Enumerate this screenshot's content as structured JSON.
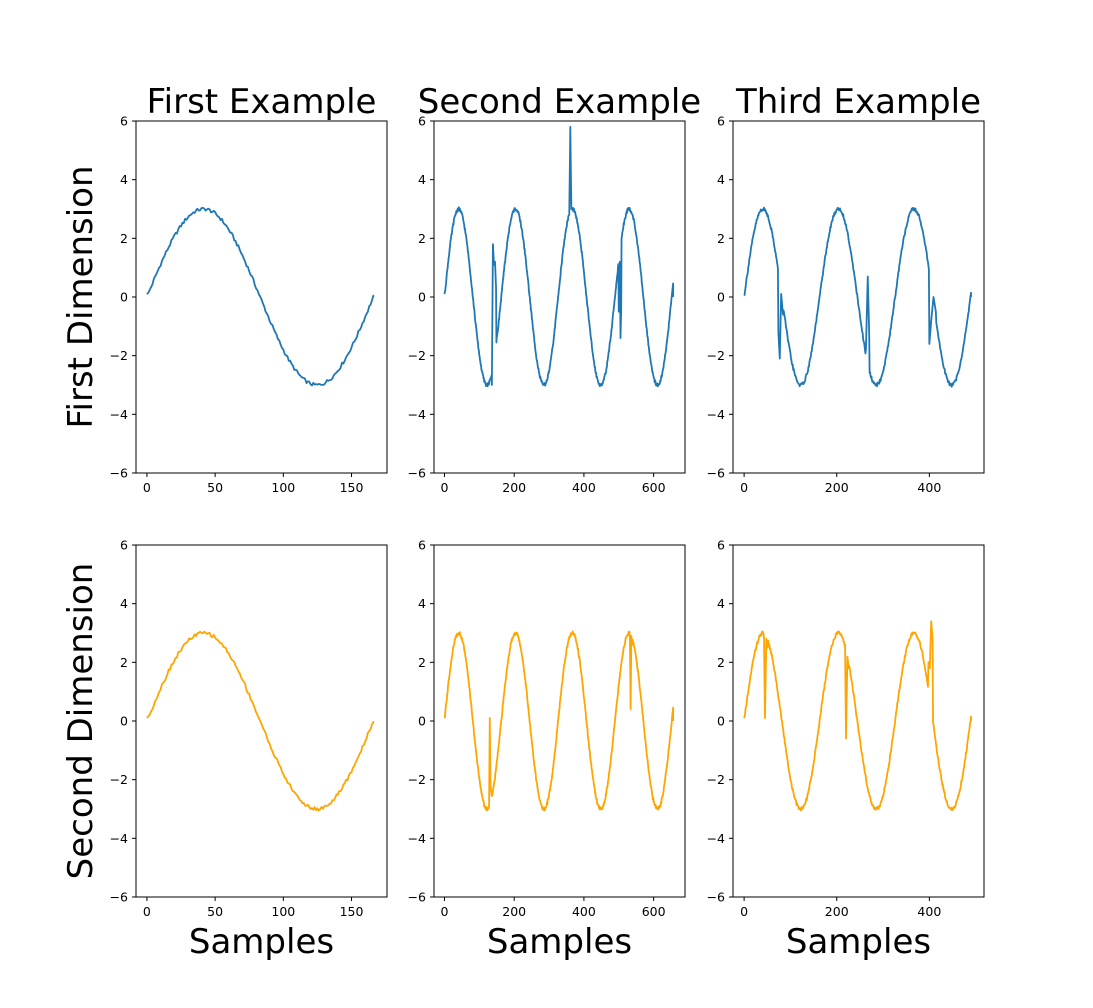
{
  "figure": {
    "column_titles": [
      "First Example",
      "Second Example",
      "Third Example"
    ],
    "row_labels": [
      "First Dimension",
      "Second Dimension"
    ],
    "x_label": "Samples"
  },
  "colors": {
    "first_dimension": "#1f77b4",
    "second_dimension": "#ffa500"
  },
  "chart_data": [
    {
      "type": "line",
      "row": 0,
      "col": 0,
      "title": "First Example",
      "ylabel": "First Dimension",
      "xlabel": "",
      "xlim": [
        -8,
        176
      ],
      "ylim": [
        -6,
        6
      ],
      "xticks": [
        0,
        50,
        100,
        150
      ],
      "yticks": [
        -6,
        -4,
        -2,
        0,
        2,
        4,
        6
      ],
      "series": [
        {
          "color": "#1f77b4",
          "amplitude": 3,
          "period": 166,
          "length": 166,
          "spikes": []
        }
      ]
    },
    {
      "type": "line",
      "row": 0,
      "col": 1,
      "title": "Second Example",
      "ylabel": "",
      "xlabel": "",
      "xlim": [
        -30,
        690
      ],
      "ylim": [
        -6,
        6
      ],
      "xticks": [
        0,
        200,
        400,
        600
      ],
      "yticks": [
        -6,
        -4,
        -2,
        0,
        2,
        4,
        6
      ],
      "series": [
        {
          "color": "#1f77b4",
          "amplitude": 3,
          "period": 163,
          "length": 656,
          "spikes": [
            {
              "x": 138,
              "points": [
                [
                  136,
                  -3.0
                ],
                [
                  139,
                  1.8
                ],
                [
                  142,
                  1.1
                ],
                [
                  145,
                  1.2
                ],
                [
                  148,
                  0.3
                ]
              ]
            },
            {
              "x": 360,
              "points": [
                [
                  358,
                  2.8
                ],
                [
                  361,
                  5.8
                ],
                [
                  364,
                  3.0
                ]
              ]
            },
            {
              "x": 505,
              "points": [
                [
                  500,
                  -0.5
                ],
                [
                  503,
                  1.2
                ],
                [
                  505,
                  -1.4
                ],
                [
                  507,
                  -0.4
                ]
              ]
            }
          ]
        }
      ]
    },
    {
      "type": "line",
      "row": 0,
      "col": 2,
      "title": "Third Example",
      "ylabel": "",
      "xlabel": "",
      "xlim": [
        -24,
        518
      ],
      "ylim": [
        -6,
        6
      ],
      "xticks": [
        0,
        200,
        400
      ],
      "yticks": [
        -6,
        -4,
        -2,
        0,
        2,
        4,
        6
      ],
      "series": [
        {
          "color": "#1f77b4",
          "amplitude": 3,
          "period": 163,
          "length": 490,
          "spikes": [
            {
              "x": 80,
              "points": [
                [
                  74,
                  -1.2
                ],
                [
                  77,
                  -2.1
                ],
                [
                  80,
                  0.1
                ],
                [
                  84,
                  -0.6
                ]
              ]
            },
            {
              "x": 268,
              "points": [
                [
                  263,
                  -1.8
                ],
                [
                  267,
                  0.7
                ],
                [
                  270,
                  -1.2
                ]
              ]
            },
            {
              "x": 405,
              "points": [
                [
                  400,
                  -1.6
                ],
                [
                  404,
                  -0.8
                ],
                [
                  409,
                  0.0
                ],
                [
                  414,
                  -0.5
                ]
              ]
            }
          ]
        }
      ]
    },
    {
      "type": "line",
      "row": 1,
      "col": 0,
      "title": "",
      "ylabel": "Second Dimension",
      "xlabel": "Samples",
      "xlim": [
        -8,
        176
      ],
      "ylim": [
        -6,
        6
      ],
      "xticks": [
        0,
        50,
        100,
        150
      ],
      "yticks": [
        -6,
        -4,
        -2,
        0,
        2,
        4,
        6
      ],
      "series": [
        {
          "color": "#ffa500",
          "amplitude": 3,
          "period": 166,
          "length": 166,
          "spikes": []
        }
      ]
    },
    {
      "type": "line",
      "row": 1,
      "col": 1,
      "title": "",
      "ylabel": "",
      "xlabel": "Samples",
      "xlim": [
        -30,
        690
      ],
      "ylim": [
        -6,
        6
      ],
      "xticks": [
        0,
        200,
        400,
        600
      ],
      "yticks": [
        -6,
        -4,
        -2,
        0,
        2,
        4,
        6
      ],
      "series": [
        {
          "color": "#ffa500",
          "amplitude": 3,
          "period": 163,
          "length": 656,
          "spikes": [
            {
              "x": 130,
              "points": [
                [
                  128,
                  -2.9
                ],
                [
                  130,
                  0.1
                ],
                [
                  132,
                  -2.2
                ],
                [
                  135,
                  -2.5
                ]
              ]
            },
            {
              "x": 535,
              "points": [
                [
                  532,
                  2.8
                ],
                [
                  534,
                  0.4
                ],
                [
                  536,
                  2.9
                ],
                [
                  539,
                  2.6
                ]
              ]
            }
          ]
        }
      ]
    },
    {
      "type": "line",
      "row": 1,
      "col": 2,
      "title": "",
      "ylabel": "",
      "xlabel": "Samples",
      "xlim": [
        -24,
        518
      ],
      "ylim": [
        -6,
        6
      ],
      "xticks": [
        0,
        200,
        400
      ],
      "yticks": [
        -6,
        -4,
        -2,
        0,
        2,
        4,
        6
      ],
      "series": [
        {
          "color": "#ffa500",
          "amplitude": 3,
          "period": 163,
          "length": 490,
          "spikes": [
            {
              "x": 45,
              "points": [
                [
                  43,
                  2.8
                ],
                [
                  45,
                  0.1
                ],
                [
                  48,
                  2.8
                ],
                [
                  51,
                  2.5
                ]
              ]
            },
            {
              "x": 220,
              "points": [
                [
                  218,
                  2.6
                ],
                [
                  220,
                  -0.6
                ],
                [
                  223,
                  2.2
                ],
                [
                  226,
                  1.8
                ]
              ]
            },
            {
              "x": 405,
              "points": [
                [
                  398,
                  2.0
                ],
                [
                  401,
                  1.8
                ],
                [
                  404,
                  3.4
                ],
                [
                  407,
                  2.8
                ]
              ]
            }
          ]
        }
      ]
    }
  ]
}
